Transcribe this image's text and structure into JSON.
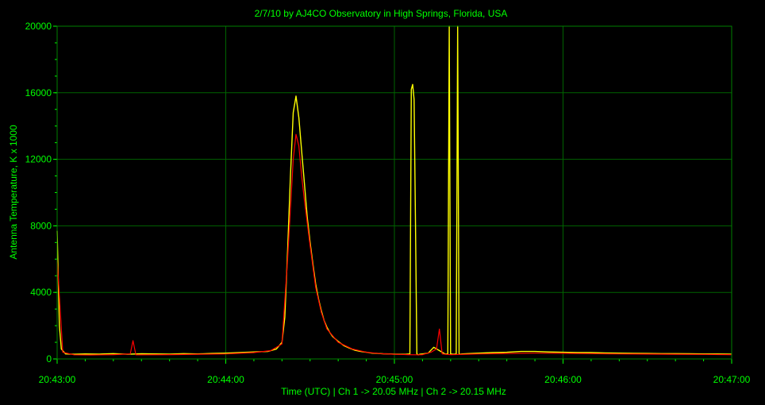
{
  "chart_data": {
    "type": "line",
    "title": "2/7/10  by  AJ4CO Observatory  in  High Springs, Florida, USA",
    "xlabel": "Time (UTC)  |  Ch 1 -> 20.05 MHz  |  Ch 2 -> 20.15 MHz",
    "ylabel": "Antenna Temperature, K x 1000",
    "xlim": [
      0,
      240
    ],
    "ylim": [
      0,
      20000
    ],
    "x_ticks": [
      {
        "x": 0,
        "label": "20:43:00"
      },
      {
        "x": 60,
        "label": "20:44:00"
      },
      {
        "x": 120,
        "label": "20:45:00"
      },
      {
        "x": 180,
        "label": "20:46:00"
      },
      {
        "x": 240,
        "label": "20:47:00"
      }
    ],
    "y_ticks": [
      {
        "y": 0,
        "label": "0"
      },
      {
        "y": 4000,
        "label": "4000"
      },
      {
        "y": 8000,
        "label": "8000"
      },
      {
        "y": 12000,
        "label": "12000"
      },
      {
        "y": 16000,
        "label": "16000"
      },
      {
        "y": 20000,
        "label": "20000"
      }
    ],
    "grid": true,
    "colors": {
      "background": "#000000",
      "grid": "#006400",
      "text": "#00ff00",
      "ch1": "#ffff00",
      "ch2": "#ff0000"
    },
    "series": [
      {
        "name": "Ch 1",
        "color": "#ffff00",
        "x": [
          0,
          0.8,
          1.5,
          3,
          6,
          10,
          15,
          20,
          25,
          30,
          35,
          40,
          45,
          50,
          55,
          60,
          65,
          70,
          75,
          78,
          80,
          81,
          82,
          83,
          84,
          85,
          86,
          87,
          88,
          89,
          90,
          91,
          92,
          93,
          94,
          95,
          96,
          97,
          98,
          100,
          102,
          104,
          106,
          108,
          110,
          112,
          114,
          116,
          118,
          120,
          122,
          124,
          125.5,
          126,
          126.5,
          127,
          127.5,
          128,
          128.5,
          129,
          130,
          132,
          134,
          136,
          138,
          139,
          139.5,
          140,
          141,
          142,
          142.5,
          143,
          143.5,
          144,
          146,
          150,
          155,
          160,
          165,
          170,
          175,
          180,
          185,
          190,
          195,
          200,
          205,
          210,
          215,
          220,
          225,
          230,
          235,
          240
        ],
        "y": [
          7700,
          2000,
          600,
          300,
          280,
          300,
          290,
          320,
          280,
          310,
          300,
          290,
          320,
          300,
          330,
          350,
          380,
          420,
          450,
          600,
          1000,
          2500,
          6500,
          11000,
          14800,
          15800,
          14500,
          12500,
          10500,
          8500,
          7000,
          5700,
          4500,
          3600,
          2900,
          2300,
          1900,
          1600,
          1350,
          1050,
          800,
          650,
          520,
          450,
          400,
          350,
          330,
          310,
          300,
          290,
          280,
          280,
          300,
          16200,
          16500,
          15600,
          8000,
          300,
          250,
          280,
          300,
          350,
          700,
          500,
          300,
          300,
          20000,
          300,
          280,
          300,
          20000,
          300,
          280,
          300,
          320,
          350,
          380,
          400,
          450,
          450,
          420,
          400,
          380,
          380,
          360,
          350,
          340,
          330,
          320,
          320,
          310,
          300,
          300,
          290
        ]
      },
      {
        "name": "Ch 2",
        "color": "#ff0000",
        "x": [
          0,
          2,
          6,
          12,
          20,
          26,
          27,
          28,
          30,
          40,
          50,
          60,
          70,
          76,
          80,
          82,
          84,
          85,
          86,
          87,
          88,
          90,
          92,
          94,
          96,
          100,
          105,
          110,
          115,
          120,
          125,
          128,
          130,
          133,
          135,
          136,
          137,
          140,
          150,
          160,
          170,
          180,
          190,
          200,
          210,
          220,
          230,
          240
        ],
        "y": [
          6000,
          400,
          250,
          240,
          260,
          300,
          1100,
          250,
          250,
          260,
          280,
          300,
          380,
          500,
          900,
          6000,
          12000,
          13500,
          12800,
          11000,
          9500,
          6800,
          4300,
          2800,
          1800,
          1000,
          600,
          400,
          320,
          280,
          260,
          250,
          260,
          400,
          600,
          1800,
          300,
          260,
          300,
          330,
          350,
          340,
          320,
          300,
          290,
          280,
          270,
          260
        ]
      }
    ]
  }
}
